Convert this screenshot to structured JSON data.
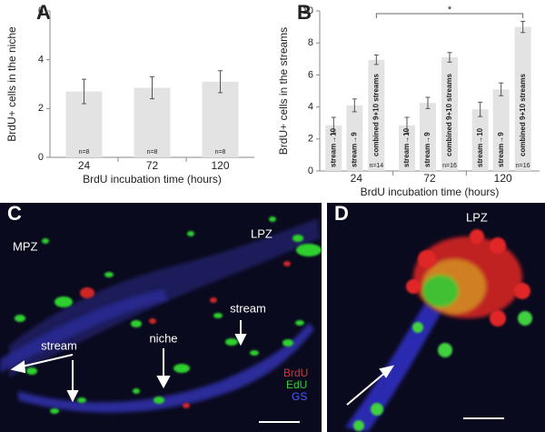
{
  "chart_data": [
    {
      "type": "bar",
      "panel": "A",
      "ylabel": "BrdU+ cells in the niche",
      "xlabel": "BrdU incubation time (hours)",
      "categories": [
        "24",
        "72",
        "120"
      ],
      "values": [
        2.7,
        2.85,
        3.1
      ],
      "errors": [
        0.5,
        0.45,
        0.45
      ],
      "n_labels": [
        "n=8",
        "n=8",
        "n=8"
      ],
      "color": "#e3e3e3",
      "ylim": [
        0,
        6
      ],
      "yticks": [
        0,
        2,
        4,
        6
      ]
    },
    {
      "type": "grouped-bar",
      "panel": "B",
      "ylabel": "BrdU+ cells in the streams",
      "xlabel": "BrdU incubation time (hours)",
      "categories": [
        "24",
        "72",
        "120"
      ],
      "series": [
        {
          "name": "stream→10",
          "color": "#e3e3e3",
          "values": [
            2.85,
            2.85,
            3.85
          ],
          "errors": [
            0.5,
            0.5,
            0.45
          ]
        },
        {
          "name": "stream→9",
          "color": "#e3e3e3",
          "values": [
            4.1,
            4.25,
            5.1
          ],
          "errors": [
            0.4,
            0.35,
            0.4
          ]
        },
        {
          "name": "combined 9+10 streams",
          "color": "#e3e3e3",
          "values": [
            6.95,
            7.1,
            9.0
          ],
          "errors": [
            0.3,
            0.3,
            0.35
          ],
          "n_labels": [
            "n=14",
            "n=16",
            "n=16"
          ]
        }
      ],
      "significance": "*",
      "ylim": [
        0,
        10
      ],
      "yticks": [
        0,
        2,
        4,
        6,
        8,
        10
      ]
    }
  ],
  "panels": {
    "C": {
      "label": "C",
      "regions": [
        "MPZ",
        "LPZ"
      ],
      "arrows": [
        "stream",
        "stream",
        "niche"
      ],
      "legend": [
        "BrdU",
        "EdU",
        "GS"
      ]
    },
    "D": {
      "label": "D",
      "regions": [
        "LPZ"
      ]
    }
  }
}
